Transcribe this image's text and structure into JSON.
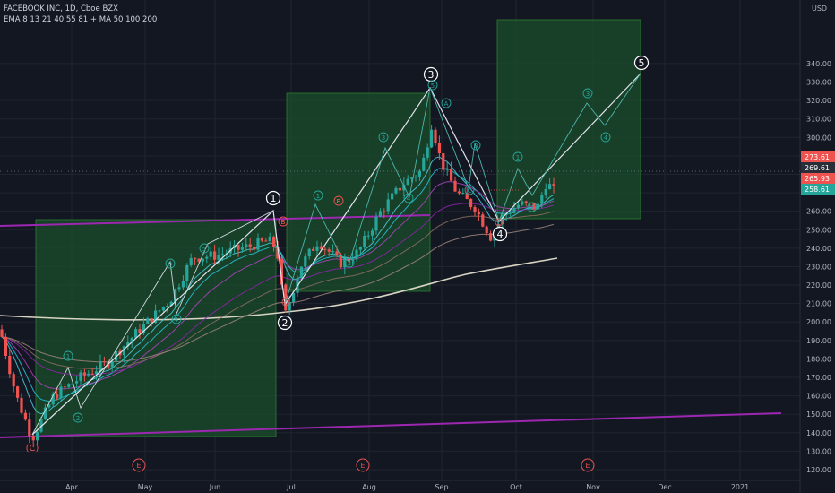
{
  "header": {
    "title": "FACEBOOK INC, 1D, Cboe BZX",
    "indicators": "EMA 8 13 21 40 55 81 + MA 50 100 200"
  },
  "chart_data": {
    "type": "candlestick",
    "currency": "USD",
    "y_ticks": [
      120,
      130,
      140,
      150,
      160,
      170,
      180,
      190,
      200,
      210,
      220,
      230,
      240,
      250,
      260,
      270,
      280,
      290,
      300,
      310,
      320,
      330,
      340
    ],
    "x_ticks": [
      "Apr",
      "May",
      "Jun",
      "Jul",
      "Aug",
      "Sep",
      "Oct",
      "Nov",
      "Dec",
      "2021"
    ],
    "price_labels": [
      {
        "value": "273.61",
        "color": "#ef5350"
      },
      {
        "value": "269.61",
        "color": "#2a2e39"
      },
      {
        "value": "265.93",
        "color": "#ef5350"
      },
      {
        "value": "258.61",
        "color": "#26a69a"
      }
    ],
    "wave_labels": {
      "major": [
        "1",
        "2",
        "3",
        "4",
        "5"
      ],
      "corrective": [
        "C"
      ],
      "minor": [
        "1",
        "2",
        "3",
        "4",
        "5",
        "A",
        "B",
        "C"
      ]
    },
    "earnings_marker": "E",
    "colors": {
      "up": "#26a69a",
      "down": "#ef5350",
      "box": "#1b4d2b",
      "channel": "#9c27b0",
      "ma200": "#d8d4c4",
      "wave": "#e0e3eb"
    }
  }
}
